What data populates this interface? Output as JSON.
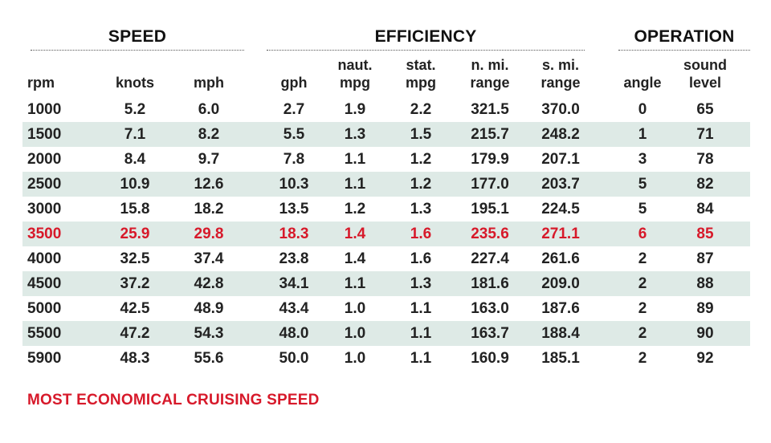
{
  "groups": {
    "speed": "SPEED",
    "efficiency": "EFFICIENCY",
    "operation": "OPERATION"
  },
  "columns": {
    "rpm": [
      "rpm"
    ],
    "knots": [
      "knots"
    ],
    "mph": [
      "mph"
    ],
    "gph": [
      "gph"
    ],
    "naut_mpg": [
      "naut.",
      "mpg"
    ],
    "stat_mpg": [
      "stat.",
      "mpg"
    ],
    "n_mi_range": [
      "n. mi.",
      "range"
    ],
    "s_mi_range": [
      "s. mi.",
      "range"
    ],
    "angle": [
      "angle"
    ],
    "sound_level": [
      "sound",
      "level"
    ]
  },
  "rows": [
    {
      "rpm": "1000",
      "knots": "5.2",
      "mph": "6.0",
      "gph": "2.7",
      "naut_mpg": "1.9",
      "stat_mpg": "2.2",
      "n_mi_range": "321.5",
      "s_mi_range": "370.0",
      "angle": "0",
      "sound_level": "65"
    },
    {
      "rpm": "1500",
      "knots": "7.1",
      "mph": "8.2",
      "gph": "5.5",
      "naut_mpg": "1.3",
      "stat_mpg": "1.5",
      "n_mi_range": "215.7",
      "s_mi_range": "248.2",
      "angle": "1",
      "sound_level": "71"
    },
    {
      "rpm": "2000",
      "knots": "8.4",
      "mph": "9.7",
      "gph": "7.8",
      "naut_mpg": "1.1",
      "stat_mpg": "1.2",
      "n_mi_range": "179.9",
      "s_mi_range": "207.1",
      "angle": "3",
      "sound_level": "78"
    },
    {
      "rpm": "2500",
      "knots": "10.9",
      "mph": "12.6",
      "gph": "10.3",
      "naut_mpg": "1.1",
      "stat_mpg": "1.2",
      "n_mi_range": "177.0",
      "s_mi_range": "203.7",
      "angle": "5",
      "sound_level": "82"
    },
    {
      "rpm": "3000",
      "knots": "15.8",
      "mph": "18.2",
      "gph": "13.5",
      "naut_mpg": "1.2",
      "stat_mpg": "1.3",
      "n_mi_range": "195.1",
      "s_mi_range": "224.5",
      "angle": "5",
      "sound_level": "84"
    },
    {
      "rpm": "3500",
      "knots": "25.9",
      "mph": "29.8",
      "gph": "18.3",
      "naut_mpg": "1.4",
      "stat_mpg": "1.6",
      "n_mi_range": "235.6",
      "s_mi_range": "271.1",
      "angle": "6",
      "sound_level": "85",
      "highlight": true
    },
    {
      "rpm": "4000",
      "knots": "32.5",
      "mph": "37.4",
      "gph": "23.8",
      "naut_mpg": "1.4",
      "stat_mpg": "1.6",
      "n_mi_range": "227.4",
      "s_mi_range": "261.6",
      "angle": "2",
      "sound_level": "87"
    },
    {
      "rpm": "4500",
      "knots": "37.2",
      "mph": "42.8",
      "gph": "34.1",
      "naut_mpg": "1.1",
      "stat_mpg": "1.3",
      "n_mi_range": "181.6",
      "s_mi_range": "209.0",
      "angle": "2",
      "sound_level": "88"
    },
    {
      "rpm": "5000",
      "knots": "42.5",
      "mph": "48.9",
      "gph": "43.4",
      "naut_mpg": "1.0",
      "stat_mpg": "1.1",
      "n_mi_range": "163.0",
      "s_mi_range": "187.6",
      "angle": "2",
      "sound_level": "89"
    },
    {
      "rpm": "5500",
      "knots": "47.2",
      "mph": "54.3",
      "gph": "48.0",
      "naut_mpg": "1.0",
      "stat_mpg": "1.1",
      "n_mi_range": "163.7",
      "s_mi_range": "188.4",
      "angle": "2",
      "sound_level": "90"
    },
    {
      "rpm": "5900",
      "knots": "48.3",
      "mph": "55.6",
      "gph": "50.0",
      "naut_mpg": "1.0",
      "stat_mpg": "1.1",
      "n_mi_range": "160.9",
      "s_mi_range": "185.1",
      "angle": "2",
      "sound_level": "92"
    }
  ],
  "footnote": "MOST ECONOMICAL CRUISING SPEED",
  "colors": {
    "highlight": "#d7192a",
    "row_shade": "#deeae6",
    "text": "#222222"
  }
}
